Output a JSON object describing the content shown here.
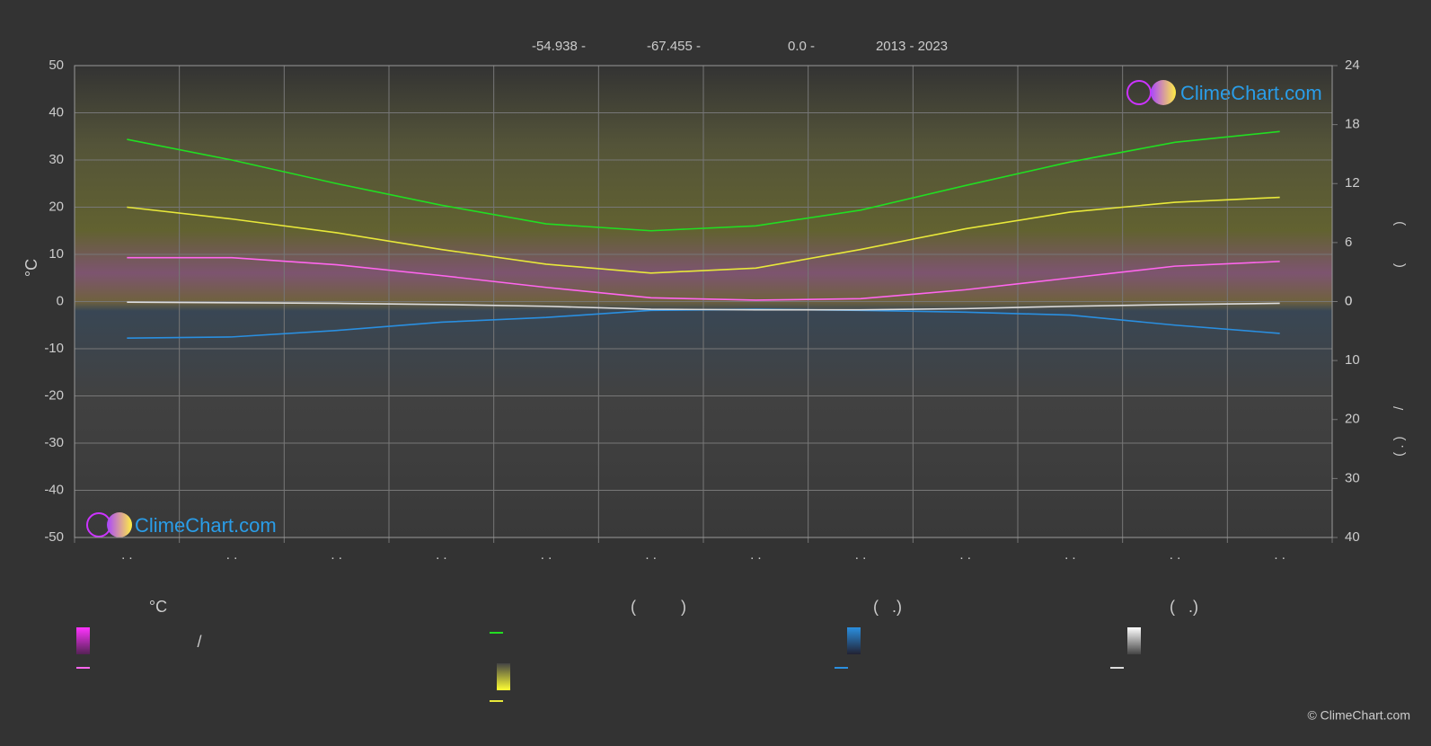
{
  "header": {
    "items": [
      "-54.938 -",
      "-67.455 -",
      "0.0 -",
      "2013 - 2023"
    ]
  },
  "chart_data": {
    "type": "line",
    "ylabel": "°C",
    "y2label": "(          )",
    "y3label": "( . )       /",
    "categories": [
      ". .",
      ". .",
      ". .",
      ". .",
      ". .",
      ". .",
      ". .",
      ". .",
      ". .",
      ". .",
      ". .",
      ". ."
    ],
    "ylim": [
      -50,
      50
    ],
    "yticks": [
      -50,
      -40,
      -30,
      -20,
      -10,
      0,
      10,
      20,
      30,
      40,
      50
    ],
    "y2lim": [
      0,
      24
    ],
    "y2ticks": [
      0,
      6,
      12,
      18,
      24
    ],
    "y3lim": [
      0,
      40
    ],
    "y3ticks": [
      0,
      10,
      20,
      30,
      40
    ],
    "grid": true,
    "series": [
      {
        "color": "#22dd22",
        "axis": "y2",
        "values": [
          16.5,
          14.4,
          12.0,
          9.8,
          7.9,
          7.2,
          7.7,
          9.3,
          11.8,
          14.2,
          16.2,
          17.3
        ]
      },
      {
        "color": "#e8e83a",
        "axis": "y2",
        "values": [
          9.6,
          8.4,
          7.0,
          5.3,
          3.8,
          2.9,
          3.4,
          5.3,
          7.4,
          9.1,
          10.1,
          10.6
        ]
      },
      {
        "color": "#ff66ee",
        "values": [
          9.3,
          9.3,
          7.8,
          5.5,
          3.0,
          0.8,
          0.3,
          0.6,
          2.5,
          5.0,
          7.5,
          8.5
        ]
      },
      {
        "color": "#2a8fe0",
        "axis": "y3",
        "values": [
          6.2,
          6.0,
          4.9,
          3.5,
          2.7,
          1.5,
          1.3,
          1.5,
          1.8,
          2.3,
          4.0,
          5.4
        ]
      },
      {
        "color": "#dddddd",
        "axis": "y3",
        "values": [
          0.1,
          0.2,
          0.3,
          0.5,
          0.8,
          1.3,
          1.4,
          1.4,
          1.2,
          0.8,
          0.5,
          0.3
        ]
      }
    ]
  },
  "legend": {
    "headers": [
      "°C",
      "(          )",
      "(   .)",
      "(   .)"
    ],
    "note": "/"
  },
  "logo_text": "ClimeChart.com",
  "copyright": "© ClimeChart.com"
}
